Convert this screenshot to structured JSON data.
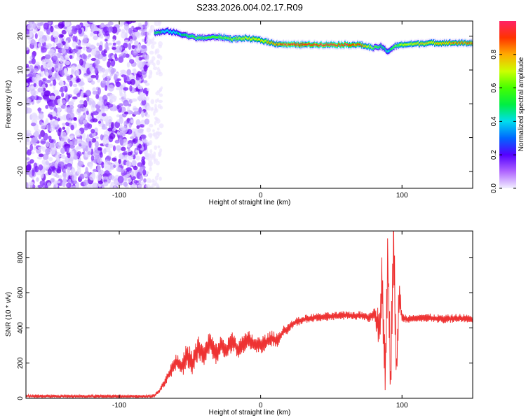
{
  "title": "S233.2026.004.02.17.R09",
  "chart_data": [
    {
      "type": "heatmap",
      "xlabel": "Height of straight line (km)",
      "ylabel": "Frequency (Hz)",
      "xlim": [
        -166,
        150
      ],
      "ylim": [
        -25,
        24.5
      ],
      "x_ticks": [
        -100,
        0,
        100
      ],
      "y_ticks": [
        -20,
        -10,
        0,
        10,
        20
      ],
      "colorbar": {
        "label": "Normalized spectral amplitude",
        "range": [
          0.0,
          1.0
        ],
        "ticks": [
          0.0,
          0.2,
          0.4,
          0.6,
          0.8
        ]
      },
      "noise_region_x": [
        -166,
        -80
      ],
      "ridge": {
        "x": [
          -75,
          -65,
          -55,
          -45,
          -40,
          -30,
          -20,
          -10,
          0,
          10,
          20,
          40,
          60,
          70,
          80,
          85,
          90,
          95,
          100,
          120,
          140,
          150
        ],
        "frequency": [
          21,
          21.5,
          20.5,
          19.5,
          19.5,
          19.8,
          19.2,
          19.4,
          18.8,
          17.8,
          17.5,
          17.5,
          17.5,
          17.5,
          16.5,
          17,
          15.5,
          17,
          17.5,
          18,
          18,
          18
        ],
        "amplitude": [
          0.5,
          0.35,
          0.45,
          0.6,
          0.55,
          0.6,
          0.65,
          0.7,
          0.75,
          0.85,
          0.95,
          0.95,
          0.95,
          0.9,
          0.6,
          0.5,
          0.4,
          0.6,
          0.7,
          0.75,
          0.85,
          0.9
        ]
      }
    },
    {
      "type": "line",
      "xlabel": "Height of straight line (km)",
      "ylabel": "SNR (10 * v/v)",
      "xlim": [
        -166,
        150
      ],
      "ylim": [
        0,
        950
      ],
      "x_ticks": [
        -100,
        0,
        100
      ],
      "y_ticks": [
        0,
        200,
        400,
        600,
        800
      ],
      "color": "#ee3333",
      "series": [
        {
          "x": [
            -166,
            -140,
            -120,
            -100,
            -80,
            -75,
            -72,
            -68,
            -64,
            -60,
            -56,
            -52,
            -48,
            -44,
            -40,
            -36,
            -32,
            -28,
            -24,
            -20,
            -16,
            -12,
            -8,
            -4,
            0,
            4,
            8,
            12,
            16,
            20,
            24,
            28,
            32,
            40,
            50,
            60,
            70,
            76,
            80,
            84,
            86,
            88,
            90,
            92,
            94,
            96,
            98,
            100,
            104,
            110,
            120,
            130,
            140,
            150
          ],
          "y": [
            10,
            12,
            10,
            12,
            10,
            15,
            40,
            90,
            150,
            210,
            170,
            250,
            200,
            290,
            240,
            320,
            250,
            300,
            270,
            330,
            280,
            310,
            330,
            300,
            300,
            320,
            340,
            330,
            380,
            400,
            430,
            440,
            450,
            460,
            465,
            470,
            470,
            460,
            480,
            400,
            700,
            100,
            780,
            60,
            940,
            150,
            600,
            460,
            450,
            460,
            455,
            450,
            455,
            450
          ],
          "noise_amplitude": [
            12,
            10,
            12,
            10,
            10,
            10,
            15,
            25,
            40,
            50,
            60,
            70,
            70,
            70,
            60,
            70,
            65,
            60,
            60,
            60,
            55,
            55,
            55,
            55,
            50,
            50,
            45,
            40,
            35,
            30,
            25,
            25,
            25,
            25,
            25,
            25,
            25,
            30,
            40,
            120,
            200,
            200,
            200,
            200,
            250,
            120,
            100,
            25,
            25,
            25,
            25,
            25,
            25,
            25
          ]
        }
      ]
    }
  ]
}
